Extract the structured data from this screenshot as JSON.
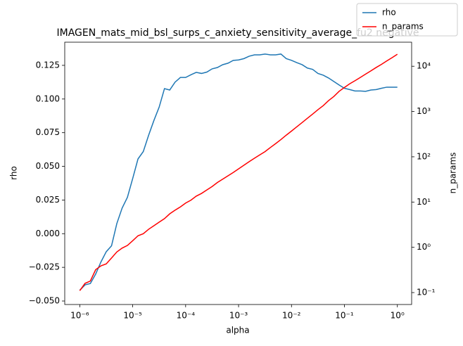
{
  "chart_data": {
    "type": "line",
    "title": "IMAGEN_mats_mid_bsl_surps_c_anxiety_sensitivity_average_fu2 negative",
    "xlabel": "alpha",
    "ylabel": "rho",
    "y2label": "n_params",
    "xscale": "log",
    "y2scale": "log",
    "legend": "upper right",
    "x": [
      1e-06,
      1.2589e-06,
      1.5849e-06,
      1.9953e-06,
      2.5119e-06,
      3.1623e-06,
      3.9811e-06,
      5.0119e-06,
      6.3096e-06,
      7.9433e-06,
      1e-05,
      1.2589e-05,
      1.5849e-05,
      1.9953e-05,
      2.5119e-05,
      3.1623e-05,
      3.9811e-05,
      5.0119e-05,
      6.3096e-05,
      7.9433e-05,
      0.0001,
      0.00012589,
      0.00015849,
      0.00019953,
      0.00025119,
      0.00031623,
      0.00039811,
      0.00050119,
      0.00063096,
      0.00079433,
      0.001,
      0.0012589,
      0.0015849,
      0.0019953,
      0.0025119,
      0.0031623,
      0.0039811,
      0.0050119,
      0.0063096,
      0.0079433,
      0.01,
      0.012589,
      0.015849,
      0.019953,
      0.025119,
      0.031623,
      0.039811,
      0.050119,
      0.063096,
      0.079433,
      0.1,
      0.12589,
      0.15849,
      0.19953,
      0.25119,
      0.31623,
      0.39811,
      0.50119,
      0.63096,
      0.79433,
      1
    ],
    "series": [
      {
        "name": "rho",
        "color": "#1f77b4",
        "axis": "y",
        "values": [
          -0.042,
          -0.038,
          -0.037,
          -0.03,
          -0.021,
          -0.0134,
          -0.009,
          0.0075,
          0.019,
          0.027,
          0.041,
          0.0555,
          0.061,
          0.073,
          0.084,
          0.094,
          0.1077,
          0.1067,
          0.1125,
          0.116,
          0.116,
          0.118,
          0.1198,
          0.119,
          0.12,
          0.1224,
          0.1234,
          0.1255,
          0.1266,
          0.1287,
          0.129,
          0.13,
          0.1318,
          0.1328,
          0.1328,
          0.1334,
          0.1328,
          0.1328,
          0.1334,
          0.13,
          0.1287,
          0.127,
          0.1255,
          0.123,
          0.122,
          0.119,
          0.1177,
          0.1156,
          0.113,
          0.1104,
          0.108,
          0.107,
          0.106,
          0.106,
          0.1057,
          0.1067,
          0.107,
          0.108,
          0.1088,
          0.1088,
          0.1088
        ]
      },
      {
        "name": "n_params",
        "color": "#ff0000",
        "axis": "y2",
        "values": [
          0.11,
          0.16,
          0.18,
          0.32,
          0.39,
          0.43,
          0.58,
          0.79,
          0.96,
          1.1,
          1.4,
          1.8,
          2.0,
          2.5,
          3.0,
          3.6,
          4.3,
          5.5,
          6.6,
          7.8,
          9.5,
          11,
          13.5,
          15.5,
          18.5,
          22,
          27,
          32,
          38,
          45,
          54,
          65,
          78,
          93,
          110,
          130,
          160,
          195,
          240,
          300,
          370,
          460,
          570,
          710,
          880,
          1100,
          1350,
          1740,
          2150,
          2800,
          3400,
          4100,
          4800,
          5660,
          6700,
          7900,
          9400,
          11000,
          13100,
          15500,
          18400
        ]
      }
    ],
    "xlim": [
      5.2e-07,
      1.86
    ],
    "xticks": [
      {
        "value": 1e-06,
        "label": "10⁻⁶"
      },
      {
        "value": 1e-05,
        "label": "10⁻⁵"
      },
      {
        "value": 0.0001,
        "label": "10⁻⁴"
      },
      {
        "value": 0.001,
        "label": "10⁻³"
      },
      {
        "value": 0.01,
        "label": "10⁻²"
      },
      {
        "value": 0.1,
        "label": "10⁻¹"
      },
      {
        "value": 1,
        "label": "10⁰"
      }
    ],
    "ylim": [
      -0.0526,
      0.1422
    ],
    "yticks": [
      {
        "value": -0.05,
        "label": "−0.050"
      },
      {
        "value": -0.025,
        "label": "−0.025"
      },
      {
        "value": 0,
        "label": "0.000"
      },
      {
        "value": 0.025,
        "label": "0.025"
      },
      {
        "value": 0.05,
        "label": "0.050"
      },
      {
        "value": 0.075,
        "label": "0.075"
      },
      {
        "value": 0.1,
        "label": "0.100"
      },
      {
        "value": 0.125,
        "label": "0.125"
      }
    ],
    "y2lim": [
      0.0545,
      34000
    ],
    "y2ticks": [
      {
        "value": 0.1,
        "label": "10⁻¹"
      },
      {
        "value": 1,
        "label": "10⁰"
      },
      {
        "value": 10,
        "label": "10¹"
      },
      {
        "value": 100,
        "label": "10²"
      },
      {
        "value": 1000,
        "label": "10³"
      },
      {
        "value": 10000,
        "label": "10⁴"
      }
    ]
  }
}
